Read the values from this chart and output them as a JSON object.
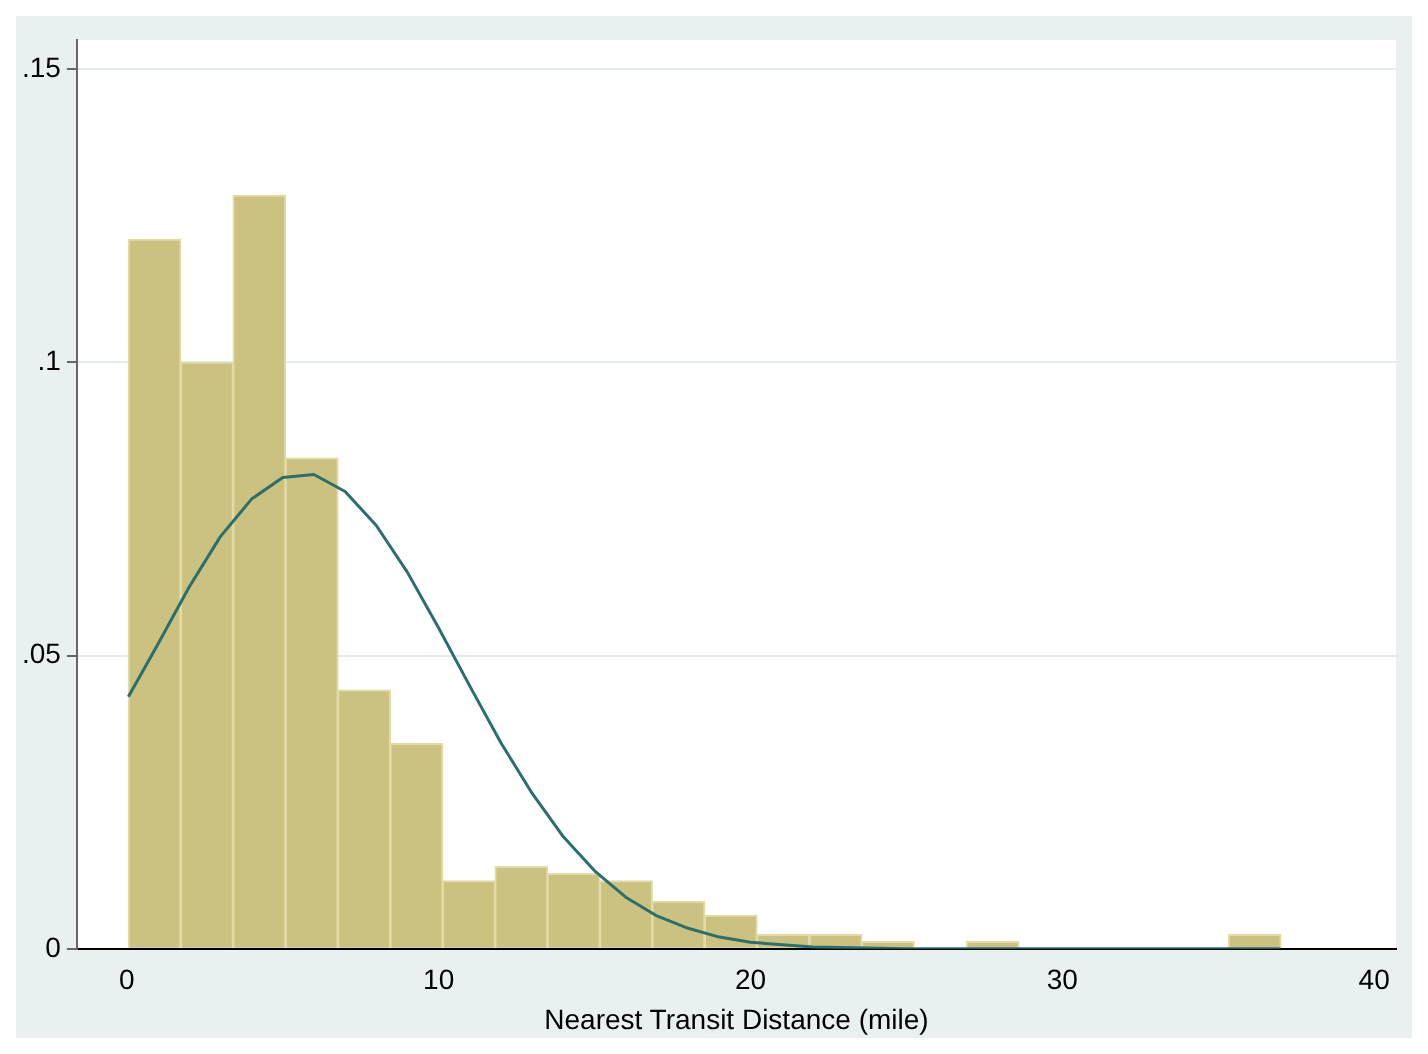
{
  "chart_data": {
    "type": "histogram",
    "xlabel": "Nearest Transit Distance (mile)",
    "bins": [
      0.05,
      1.73,
      3.41,
      5.09,
      6.77,
      8.45,
      10.13,
      11.81,
      13.49,
      15.17,
      16.85,
      18.53,
      20.21,
      21.89,
      23.57,
      25.25,
      26.93,
      28.61,
      30.29,
      31.97,
      33.65,
      35.33,
      37.01
    ],
    "values": [
      0.121,
      0.1,
      0.1285,
      0.0837,
      0.0441,
      0.035,
      0.0116,
      0.014,
      0.0128,
      0.0116,
      0.0081,
      0.0057,
      0.0024,
      0.0024,
      0.0012,
      0,
      0.0012,
      0,
      0,
      0,
      0,
      0.0024
    ],
    "color": "#cbc27f",
    "series": [
      {
        "type": "line",
        "color": "#2a6e6e",
        "x": [
          0.05,
          1,
          2,
          3,
          4,
          5,
          6,
          7,
          8,
          9,
          10,
          11,
          12,
          13,
          14,
          15,
          16,
          17,
          18,
          19,
          20,
          22,
          25,
          30,
          37
        ],
        "values": [
          0.043,
          0.052,
          0.0617,
          0.0703,
          0.0767,
          0.0804,
          0.0809,
          0.078,
          0.0722,
          0.0642,
          0.0547,
          0.0448,
          0.0351,
          0.0265,
          0.0191,
          0.0133,
          0.0088,
          0.0056,
          0.0035,
          0.002,
          0.0011,
          0.0003,
          0,
          0,
          0
        ]
      }
    ],
    "xlim": [
      -1.6,
      40.7
    ],
    "xticks": [
      0,
      10,
      20,
      30,
      40
    ],
    "ylim": [
      0,
      0.155
    ],
    "yticks": [
      {
        "value": 0,
        "label": "0"
      },
      {
        "value": 0.05,
        "label": ".05"
      },
      {
        "value": 0.1,
        "label": ".1"
      },
      {
        "value": 0.15,
        "label": ".15"
      }
    ],
    "grid": "y",
    "legend": false,
    "marker": "none",
    "line_style": "solid"
  }
}
